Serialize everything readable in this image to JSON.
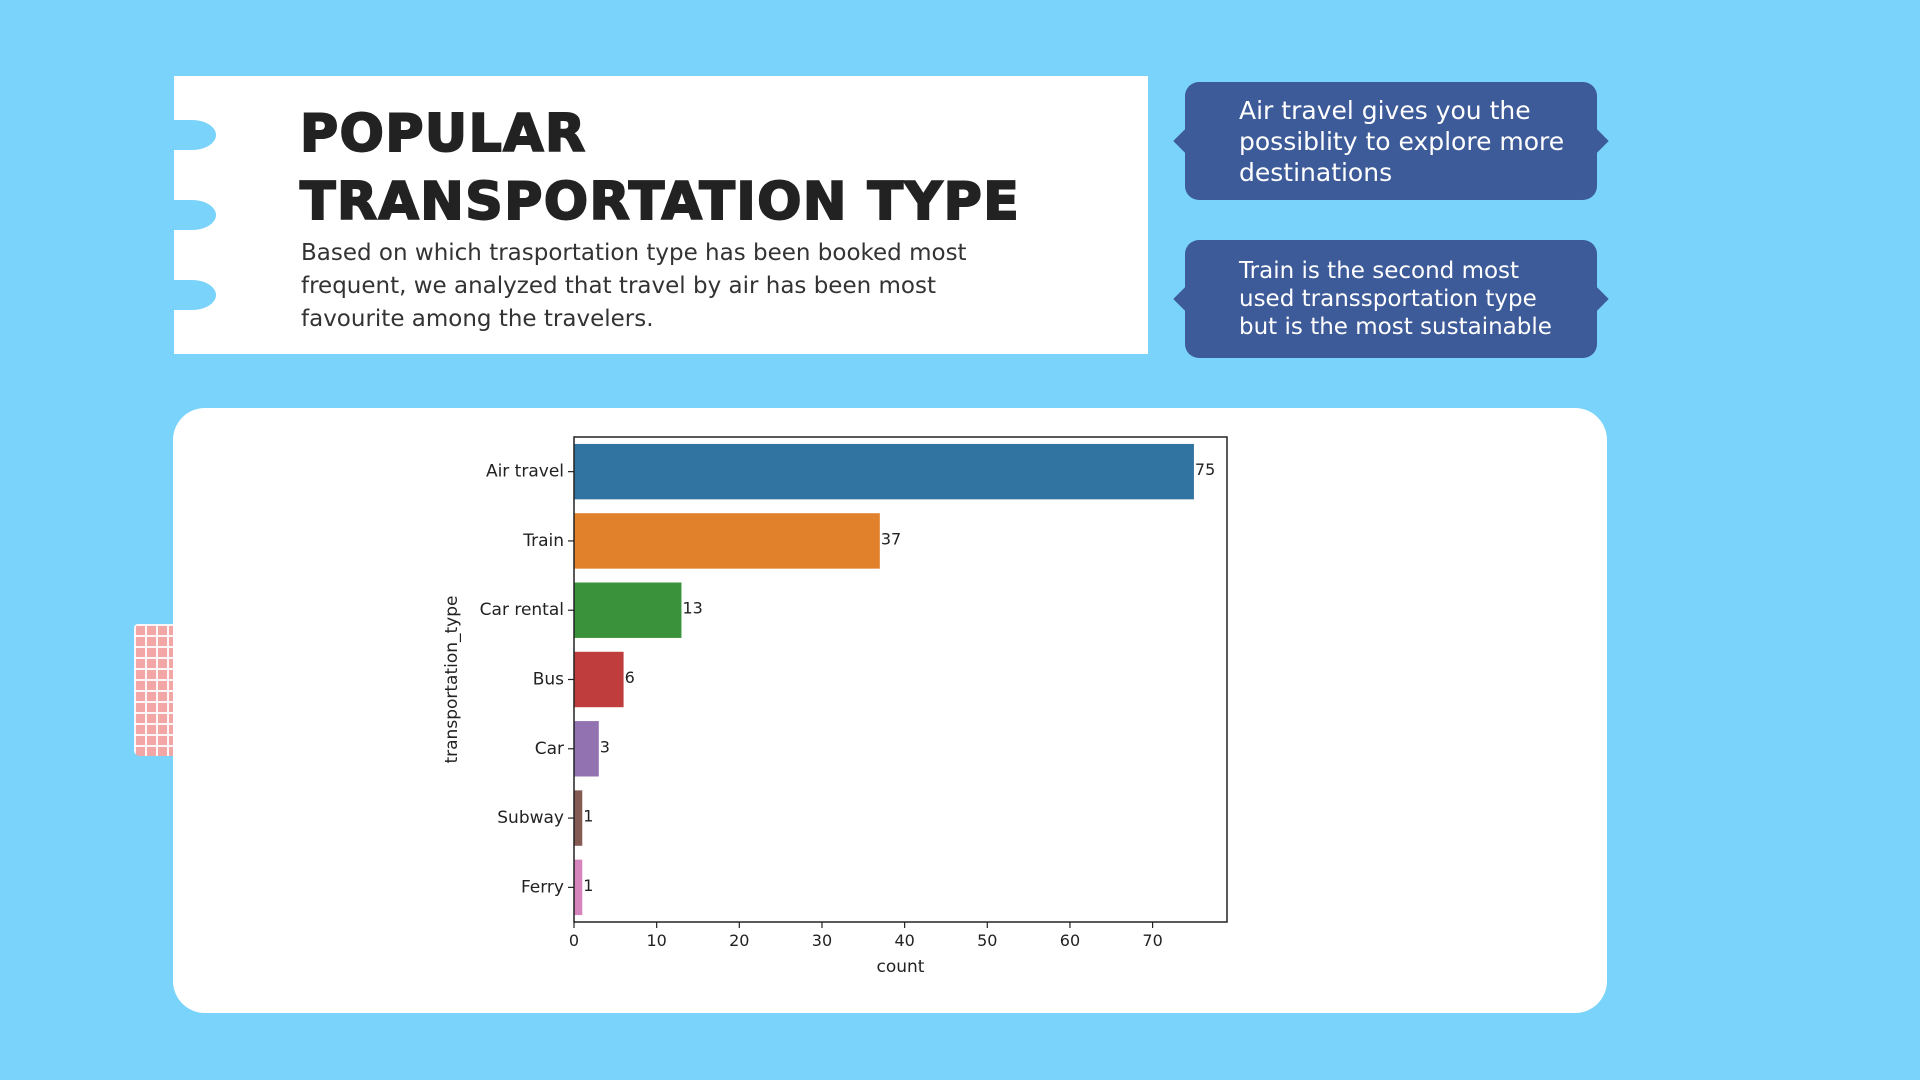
{
  "header": {
    "title_line1": "POPULAR",
    "title_line2": "TRANSPORTATION TYPE",
    "subtitle": "Based on which trasportation type has been booked most frequent, we analyzed that travel by air has been most favourite among the travelers."
  },
  "callouts": [
    {
      "text": "Air travel gives you the possiblity to explore more destinations"
    },
    {
      "text": "Train is the second most used transsportation type but is the most sustainable"
    }
  ],
  "colors": {
    "background": "#79d3fa",
    "callout": "#3d5a99",
    "deco_grid": "#f2a6a6"
  },
  "chart_data": {
    "type": "bar",
    "orientation": "horizontal",
    "categories": [
      "Air travel",
      "Train",
      "Car rental",
      "Bus",
      "Car",
      "Subway",
      "Ferry"
    ],
    "values": [
      75,
      37,
      13,
      6,
      3,
      1,
      1
    ],
    "colors": [
      "#3274a1",
      "#e1812c",
      "#3a923a",
      "#c03d3e",
      "#9372b2",
      "#845b53",
      "#d684bd"
    ],
    "xlabel": "count",
    "ylabel": "transportation_type",
    "xlim": [
      0,
      79
    ],
    "xticks": [
      0,
      10,
      20,
      30,
      40,
      50,
      60,
      70
    ],
    "data_labels": true,
    "grid": false
  }
}
